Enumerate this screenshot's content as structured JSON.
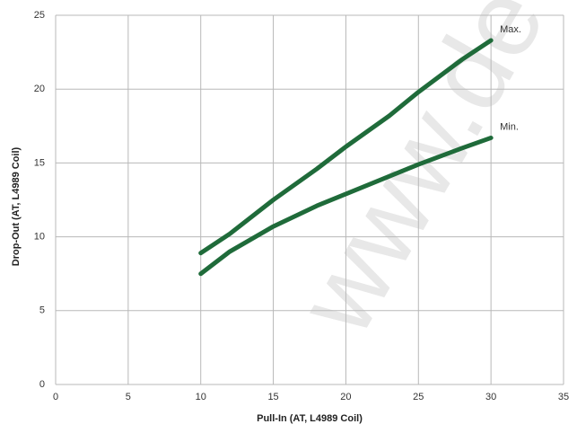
{
  "chart_data": {
    "type": "line",
    "watermark": "www.de",
    "xlabel": "Pull-In (AT, L4989 Coil)",
    "ylabel": "Drop-Out (AT, L4989 Coil)",
    "x": [
      10,
      12,
      15,
      18,
      20,
      23,
      25,
      28,
      30
    ],
    "series": [
      {
        "name": "Max.",
        "color": "#1f6b3a",
        "values": [
          8.9,
          10.2,
          12.5,
          14.6,
          16.1,
          18.2,
          19.8,
          22.0,
          23.3
        ]
      },
      {
        "name": "Min.",
        "color": "#1f6b3a",
        "values": [
          7.5,
          9.0,
          10.7,
          12.1,
          12.9,
          14.1,
          14.9,
          16.0,
          16.7
        ]
      }
    ],
    "xlim": [
      0,
      35
    ],
    "xticks": [
      0,
      5,
      10,
      15,
      20,
      25,
      30,
      35
    ],
    "ylim": [
      0,
      25
    ],
    "yticks": [
      0,
      5,
      10,
      15,
      20,
      25
    ],
    "grid": true
  }
}
